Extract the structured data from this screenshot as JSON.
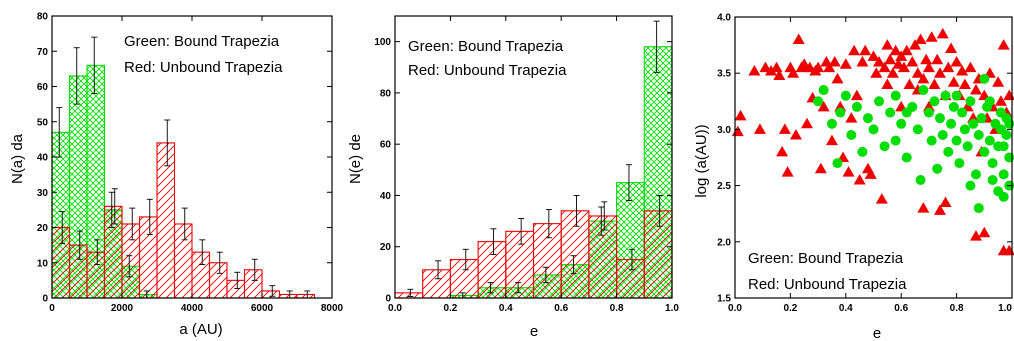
{
  "colors": {
    "green": "#00dd00",
    "red": "#ee0000",
    "axis": "#000000",
    "errorbar": "#000000"
  },
  "chart_data": [
    {
      "type": "bar",
      "subtype": "histogram",
      "xlabel": "a (AU)",
      "ylabel": "N(a) da",
      "xlim": [
        0,
        8000
      ],
      "ylim": [
        0,
        80
      ],
      "xticks": [
        0,
        2000,
        4000,
        6000,
        8000
      ],
      "yticks": [
        0,
        10,
        20,
        30,
        40,
        50,
        60,
        70,
        80
      ],
      "xtick_labels": [
        "0",
        "2000",
        "4000",
        "6000",
        "8000"
      ],
      "ytick_labels": [
        "0",
        "10",
        "20",
        "30",
        "40",
        "50",
        "60",
        "70",
        "80"
      ],
      "bin_edges": [
        0,
        500,
        1000,
        1500,
        2000,
        2500,
        3000,
        3500,
        4000,
        4500,
        5000,
        5500,
        6000,
        6500,
        7000,
        7500
      ],
      "legend": [
        "Green: Bound Trapezia",
        "Red: Unbound Trapezia"
      ],
      "legend_position": "top-right",
      "series": [
        {
          "name": "Green: Bound Trapezia",
          "color": "#00dd00",
          "hatch": "cross",
          "values": [
            47,
            63,
            66,
            25,
            9,
            1,
            0,
            0,
            0,
            0,
            0,
            0,
            0,
            0,
            0
          ],
          "errors": [
            7,
            8,
            8,
            5,
            3,
            1,
            0,
            0,
            0,
            0,
            0,
            0,
            0,
            0,
            0
          ]
        },
        {
          "name": "Red: Unbound Trapezia",
          "color": "#ee0000",
          "hatch": "diagonal",
          "values": [
            20,
            15,
            13,
            26,
            21,
            23,
            44,
            21,
            13,
            10,
            5,
            8,
            2,
            1,
            1
          ],
          "errors": [
            4.5,
            4,
            3.5,
            5,
            4.5,
            5,
            6.5,
            4.5,
            3.5,
            3,
            2.3,
            3,
            1.5,
            1,
            1
          ]
        }
      ]
    },
    {
      "type": "bar",
      "subtype": "histogram",
      "xlabel": "e",
      "ylabel": "N(e) de",
      "xlim": [
        0,
        1
      ],
      "ylim": [
        0,
        110
      ],
      "xticks": [
        0,
        0.2,
        0.4,
        0.6,
        0.8,
        1.0
      ],
      "yticks": [
        0,
        20,
        40,
        60,
        80,
        100
      ],
      "xtick_labels": [
        "0.0",
        "0.2",
        "0.4",
        "0.6",
        "0.8",
        "1.0"
      ],
      "ytick_labels": [
        "0",
        "20",
        "40",
        "60",
        "80",
        "100"
      ],
      "bin_edges": [
        0,
        0.1,
        0.2,
        0.3,
        0.4,
        0.5,
        0.6,
        0.7,
        0.8,
        0.9,
        1.0
      ],
      "legend": [
        "Green: Bound Trapezia",
        "Red: Unbound Trapezia"
      ],
      "legend_position": "top-left",
      "series": [
        {
          "name": "Green: Bound Trapezia",
          "color": "#00dd00",
          "hatch": "cross",
          "values": [
            0,
            0,
            1,
            4,
            4,
            9,
            13,
            30,
            45,
            98
          ],
          "errors": [
            0,
            0,
            1,
            2,
            2,
            3,
            3.5,
            5.5,
            7,
            10
          ]
        },
        {
          "name": "Red: Unbound Trapezia",
          "color": "#ee0000",
          "hatch": "diagonal",
          "values": [
            2,
            11,
            15,
            22,
            26,
            29,
            34,
            32,
            15,
            34
          ],
          "errors": [
            1.4,
            3.5,
            4,
            5,
            5,
            5.5,
            6,
            5.5,
            4,
            6
          ]
        }
      ]
    },
    {
      "type": "scatter",
      "xlabel": "e",
      "ylabel": "log (a(AU))",
      "xlim": [
        0,
        1.0
      ],
      "ylim": [
        1.5,
        4.0
      ],
      "xticks": [
        0,
        0.2,
        0.4,
        0.6,
        0.8,
        1.0
      ],
      "yticks": [
        1.5,
        2.0,
        2.5,
        3.0,
        3.5,
        4.0
      ],
      "xtick_labels": [
        "0.0",
        "0.2",
        "0.4",
        "0.6",
        "0.8",
        "1.0"
      ],
      "ytick_labels": [
        "1.5",
        "2.0",
        "2.5",
        "3.0",
        "3.5",
        "4.0"
      ],
      "legend": [
        "Green: Bound Trapezia",
        "Red: Unbound Trapezia"
      ],
      "legend_position": "bottom-left",
      "series": [
        {
          "name": "Red: Unbound Trapezia",
          "color": "#ee0000",
          "marker": "triangle",
          "points": [
            [
              0.02,
              3.12
            ],
            [
              0.01,
              2.98
            ],
            [
              0.07,
              3.52
            ],
            [
              0.09,
              3.0
            ],
            [
              0.11,
              3.55
            ],
            [
              0.13,
              3.52
            ],
            [
              0.15,
              3.55
            ],
            [
              0.16,
              3.48
            ],
            [
              0.17,
              2.8
            ],
            [
              0.18,
              3.0
            ],
            [
              0.19,
              2.62
            ],
            [
              0.2,
              3.55
            ],
            [
              0.21,
              3.5
            ],
            [
              0.22,
              2.95
            ],
            [
              0.23,
              3.8
            ],
            [
              0.24,
              3.55
            ],
            [
              0.25,
              3.58
            ],
            [
              0.26,
              3.05
            ],
            [
              0.27,
              3.55
            ],
            [
              0.28,
              3.28
            ],
            [
              0.29,
              3.52
            ],
            [
              0.3,
              3.55
            ],
            [
              0.31,
              2.65
            ],
            [
              0.32,
              3.2
            ],
            [
              0.33,
              3.6
            ],
            [
              0.34,
              3.55
            ],
            [
              0.35,
              2.9
            ],
            [
              0.36,
              3.6
            ],
            [
              0.37,
              3.45
            ],
            [
              0.38,
              3.2
            ],
            [
              0.39,
              2.75
            ],
            [
              0.4,
              3.58
            ],
            [
              0.41,
              2.62
            ],
            [
              0.42,
              3.1
            ],
            [
              0.43,
              3.7
            ],
            [
              0.44,
              3.3
            ],
            [
              0.45,
              2.55
            ],
            [
              0.46,
              3.6
            ],
            [
              0.47,
              3.7
            ],
            [
              0.48,
              2.65
            ],
            [
              0.49,
              2.6
            ],
            [
              0.5,
              3.65
            ],
            [
              0.51,
              3.5
            ],
            [
              0.52,
              3.6
            ],
            [
              0.53,
              2.38
            ],
            [
              0.54,
              3.55
            ],
            [
              0.55,
              3.75
            ],
            [
              0.56,
              3.62
            ],
            [
              0.57,
              3.5
            ],
            [
              0.58,
              3.7
            ],
            [
              0.59,
              3.58
            ],
            [
              0.6,
              3.65
            ],
            [
              0.61,
              3.55
            ],
            [
              0.62,
              3.7
            ],
            [
              0.63,
              3.4
            ],
            [
              0.64,
              3.6
            ],
            [
              0.65,
              3.75
            ],
            [
              0.66,
              3.5
            ],
            [
              0.67,
              3.8
            ],
            [
              0.68,
              3.45
            ],
            [
              0.69,
              3.62
            ],
            [
              0.7,
              3.55
            ],
            [
              0.71,
              3.82
            ],
            [
              0.72,
              3.4
            ],
            [
              0.73,
              3.62
            ],
            [
              0.74,
              3.5
            ],
            [
              0.75,
              3.85
            ],
            [
              0.76,
              3.3
            ],
            [
              0.77,
              3.55
            ],
            [
              0.78,
              3.72
            ],
            [
              0.79,
              3.42
            ],
            [
              0.8,
              3.6
            ],
            [
              0.81,
              3.3
            ],
            [
              0.82,
              3.52
            ],
            [
              0.83,
              3.4
            ],
            [
              0.84,
              3.2
            ],
            [
              0.85,
              3.55
            ],
            [
              0.86,
              3.1
            ],
            [
              0.87,
              3.35
            ],
            [
              0.88,
              3.45
            ],
            [
              0.89,
              2.8
            ],
            [
              0.9,
              3.3
            ],
            [
              0.91,
              3.1
            ],
            [
              0.92,
              3.5
            ],
            [
              0.93,
              3.2
            ],
            [
              0.94,
              3.0
            ],
            [
              0.95,
              3.42
            ],
            [
              0.96,
              3.25
            ],
            [
              0.97,
              3.75
            ],
            [
              0.98,
              3.15
            ],
            [
              0.99,
              3.3
            ],
            [
              0.66,
              3.35
            ],
            [
              0.7,
              3.2
            ],
            [
              0.55,
              3.4
            ],
            [
              0.6,
              3.2
            ],
            [
              0.74,
              2.28
            ],
            [
              0.68,
              2.3
            ],
            [
              0.76,
              2.35
            ],
            [
              0.87,
              2.05
            ],
            [
              0.9,
              2.08
            ],
            [
              0.97,
              1.92
            ],
            [
              0.99,
              1.92
            ]
          ]
        },
        {
          "name": "Green: Bound Trapezia",
          "color": "#00dd00",
          "marker": "circle",
          "points": [
            [
              0.3,
              3.25
            ],
            [
              0.32,
              3.35
            ],
            [
              0.35,
              3.05
            ],
            [
              0.37,
              2.7
            ],
            [
              0.38,
              3.15
            ],
            [
              0.4,
              3.3
            ],
            [
              0.42,
              2.95
            ],
            [
              0.44,
              3.2
            ],
            [
              0.46,
              2.8
            ],
            [
              0.48,
              3.1
            ],
            [
              0.5,
              3.0
            ],
            [
              0.52,
              3.25
            ],
            [
              0.54,
              2.85
            ],
            [
              0.56,
              3.15
            ],
            [
              0.58,
              3.3
            ],
            [
              0.6,
              3.05
            ],
            [
              0.62,
              2.75
            ],
            [
              0.64,
              3.2
            ],
            [
              0.66,
              3.0
            ],
            [
              0.67,
              2.55
            ],
            [
              0.68,
              3.35
            ],
            [
              0.7,
              3.15
            ],
            [
              0.71,
              2.9
            ],
            [
              0.72,
              3.25
            ],
            [
              0.73,
              2.65
            ],
            [
              0.74,
              3.1
            ],
            [
              0.75,
              2.95
            ],
            [
              0.76,
              3.3
            ],
            [
              0.77,
              2.8
            ],
            [
              0.78,
              3.05
            ],
            [
              0.79,
              3.2
            ],
            [
              0.8,
              2.9
            ],
            [
              0.81,
              2.7
            ],
            [
              0.82,
              3.15
            ],
            [
              0.83,
              3.0
            ],
            [
              0.84,
              2.85
            ],
            [
              0.85,
              3.25
            ],
            [
              0.86,
              3.05
            ],
            [
              0.87,
              2.6
            ],
            [
              0.88,
              2.95
            ],
            [
              0.89,
              3.1
            ],
            [
              0.9,
              2.8
            ],
            [
              0.91,
              3.2
            ],
            [
              0.92,
              2.9
            ],
            [
              0.93,
              2.7
            ],
            [
              0.94,
              3.05
            ],
            [
              0.95,
              2.85
            ],
            [
              0.96,
              3.15
            ],
            [
              0.97,
              2.6
            ],
            [
              0.98,
              2.95
            ],
            [
              0.99,
              2.75
            ],
            [
              0.95,
              2.45
            ],
            [
              0.97,
              2.4
            ],
            [
              0.99,
              2.5
            ],
            [
              0.96,
              3.0
            ],
            [
              0.98,
              3.1
            ],
            [
              0.92,
              3.25
            ],
            [
              0.88,
              2.3
            ],
            [
              0.93,
              2.55
            ],
            [
              0.85,
              2.5
            ],
            [
              0.9,
              3.45
            ],
            [
              0.62,
              3.15
            ],
            [
              0.58,
              2.9
            ],
            [
              0.8,
              3.3
            ],
            [
              0.99,
              3.05
            ],
            [
              0.97,
              2.85
            ]
          ]
        }
      ]
    }
  ]
}
